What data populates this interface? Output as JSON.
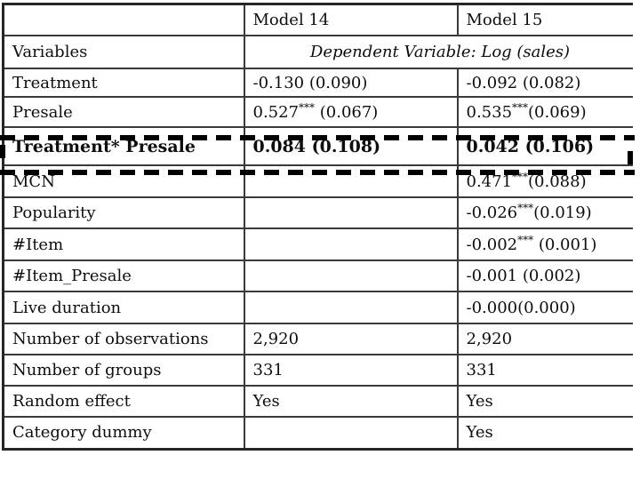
{
  "table": {
    "header": [
      "",
      "Model 14",
      "Model 15"
    ],
    "dv_row": {
      "label": "Variables",
      "value": "Dependent Variable: Log (sales)"
    },
    "rows": [
      {
        "label": "Treatment",
        "m14": "-0.130 (0.090)",
        "m15": "-0.092 (0.082)",
        "highlight": false
      },
      {
        "label": "Presale",
        "m14": "0.527*** (0.067)",
        "m15": "0.535***(0.069)",
        "highlight": false
      },
      {
        "label": "Treatment* Presale",
        "m14": "0.084 (0.108)",
        "m15": "0.042 (0.106)",
        "highlight": true
      },
      {
        "label": "MCN",
        "m14": "",
        "m15": "0.471***(0.088)",
        "highlight": false
      },
      {
        "label": "Popularity",
        "m14": "",
        "m15": "-0.026***(0.019)",
        "highlight": false
      },
      {
        "label": "#Item",
        "m14": "",
        "m15": "-0.002*** (0.001)",
        "highlight": false
      },
      {
        "label": "#Item_Presale",
        "m14": "",
        "m15": "-0.001 (0.002)",
        "highlight": false
      },
      {
        "label": "Live duration",
        "m14": "",
        "m15": "-0.000(0.000)",
        "highlight": false
      },
      {
        "label": "Number of observations",
        "m14": "2,920",
        "m15": "2,920",
        "highlight": false
      },
      {
        "label": "Number of groups",
        "m14": "331",
        "m15": "331",
        "highlight": false
      },
      {
        "label": "Random effect",
        "m14": "Yes",
        "m15": "Yes",
        "highlight": false
      },
      {
        "label": "Category dummy",
        "m14": "",
        "m15": "Yes",
        "highlight": false
      }
    ],
    "highlight_note_color": "#000000",
    "border_color": "#3a3a3a",
    "significance_marker": "***"
  }
}
